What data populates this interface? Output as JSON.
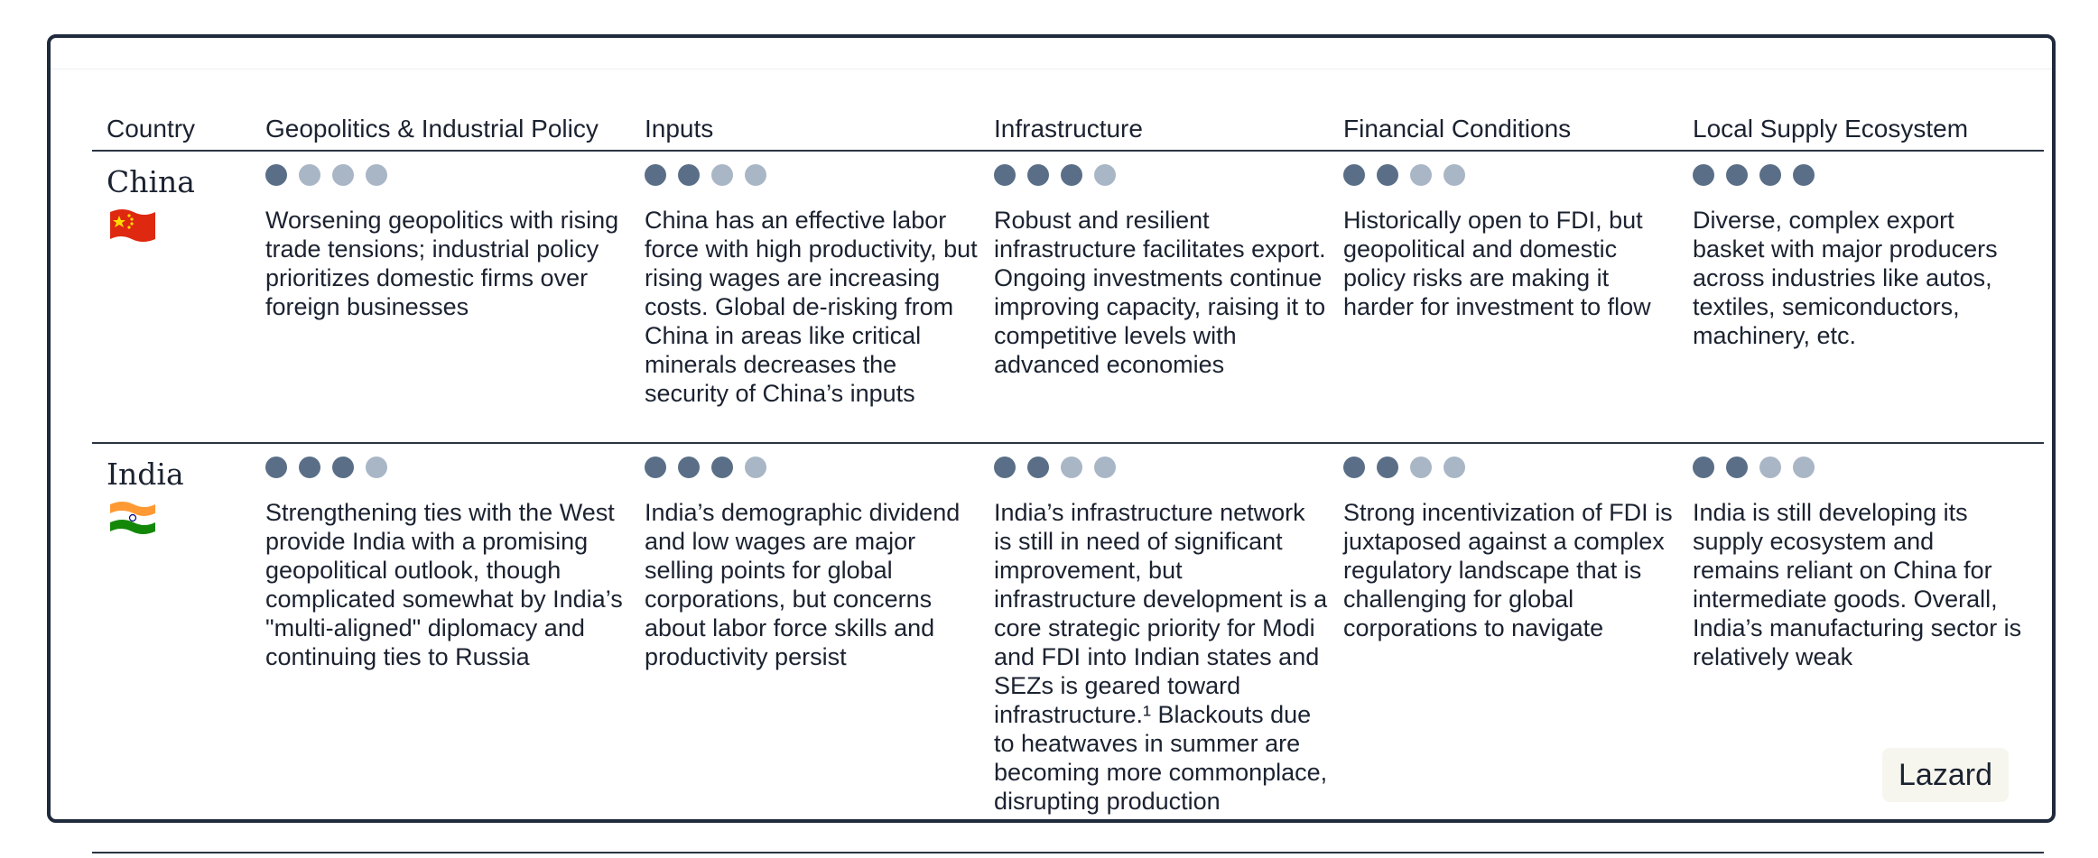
{
  "headers": [
    "Country",
    "Geopolitics & Industrial Policy",
    "Inputs",
    "Infrastructure",
    "Financial Conditions",
    "Local Supply Ecosystem"
  ],
  "colors": {
    "dot_filled": "#5a6f87",
    "dot_empty": "#a9b6c6",
    "border": "#1f2a3c"
  },
  "rows": [
    {
      "country": "China",
      "flag_icon": "china-flag-icon",
      "cells": [
        {
          "rating": 1,
          "max": 4,
          "text": "Worsening geopolitics with rising trade tensions; industrial policy prioritizes domestic firms over foreign businesses"
        },
        {
          "rating": 2,
          "max": 4,
          "text": "China has an effective labor force with high productivity, but rising wages are increasing costs. Global de-risking from China in areas like critical minerals decreases the security of China’s inputs"
        },
        {
          "rating": 3,
          "max": 4,
          "text": "Robust and resilient infrastructure facilitates export. Ongoing investments continue improving capacity, raising it to competitive levels with advanced economies"
        },
        {
          "rating": 2,
          "max": 4,
          "text": "Historically open to FDI, but geopolitical and domestic policy risks are making it harder for investment to flow"
        },
        {
          "rating": 4,
          "max": 4,
          "text": "Diverse, complex export basket with major producers across industries like autos, textiles, semiconductors, machinery, etc."
        }
      ]
    },
    {
      "country": "India",
      "flag_icon": "india-flag-icon",
      "cells": [
        {
          "rating": 3,
          "max": 4,
          "text": "Strengthening ties with the West provide India with a promising geopolitical outlook, though complicated somewhat by India’s \"multi-aligned\" diplomacy and continuing ties to Russia"
        },
        {
          "rating": 3,
          "max": 4,
          "text": "India’s demographic dividend and low wages are major selling points for global corporations, but concerns about labor force skills and productivity persist"
        },
        {
          "rating": 2,
          "max": 4,
          "text": "India’s infrastructure network is still in need of significant improvement, but infrastructure development is a core strategic priority for Modi and FDI into Indian states and SEZs is geared toward infrastructure.¹ Blackouts due to heatwaves in summer are becoming more commonplace, disrupting production"
        },
        {
          "rating": 2,
          "max": 4,
          "text": "Strong incentivization of FDI is juxtaposed against a complex regulatory landscape that is challenging for global corporations to navigate"
        },
        {
          "rating": 2,
          "max": 4,
          "text": "India is still developing its supply ecosystem and remains reliant on China for intermediate goods. Overall, India’s manufacturing sector is relatively weak"
        }
      ]
    }
  ],
  "badge": "Lazard"
}
